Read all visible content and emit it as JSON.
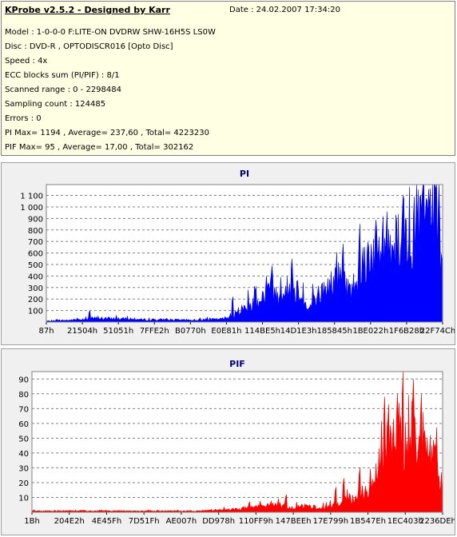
{
  "header": {
    "title": "KProbe v2.5.2 - Designed by Karr",
    "date": "Date : 24.02.2007 17:34:20",
    "lines": [
      "Model : 1-0-0-0 F:LITE-ON DVDRW SHW-16H5S  LS0W",
      "Disc : DVD-R , OPTODISCR016 [Opto Disc]",
      "Speed : 4x",
      "ECC blocks sum (PI/PIF) : 8/1",
      "Scanned range : 0 - 2298484",
      "Sampling count : 124485",
      "Errors : 0",
      "PI Max= 1194 , Average= 237,60 , Total= 4223230",
      "PIF Max= 95 , Average= 17,00 , Total= 302162"
    ]
  },
  "colors": {
    "pi": "#0000ff",
    "pif": "#ff0000",
    "title": "#000080",
    "panel": "#f0f0f0",
    "info_bg": "#ffffe3"
  },
  "chart_data": [
    {
      "type": "area",
      "title": "PI",
      "ylim": [
        0,
        1194
      ],
      "yticks": [
        100,
        200,
        300,
        400,
        500,
        600,
        700,
        800,
        900,
        1000,
        1100
      ],
      "ytick_labels": [
        "100",
        "200",
        "300",
        "400",
        "500",
        "600",
        "700",
        "800",
        "900",
        "1 000",
        "1 100"
      ],
      "x_tick_labels": [
        "87h",
        "21504h",
        "51051h",
        "7FFE2h",
        "B0770h",
        "E0E81h",
        "114BE5h",
        "14D1E3h",
        "185845h",
        "1BE022h",
        "1F6B28h",
        "22F74Ch"
      ],
      "grid": true,
      "series": [
        {
          "profile": [
            [
              0,
              10
            ],
            [
              0.06,
              20
            ],
            [
              0.12,
              40
            ],
            [
              0.18,
              35
            ],
            [
              0.24,
              25
            ],
            [
              0.3,
              25
            ],
            [
              0.36,
              20
            ],
            [
              0.4,
              25
            ],
            [
              0.44,
              30
            ],
            [
              0.47,
              60
            ],
            [
              0.5,
              150
            ],
            [
              0.53,
              210
            ],
            [
              0.56,
              320
            ],
            [
              0.59,
              280
            ],
            [
              0.62,
              380
            ],
            [
              0.64,
              330
            ],
            [
              0.66,
              120
            ],
            [
              0.68,
              250
            ],
            [
              0.71,
              360
            ],
            [
              0.74,
              470
            ],
            [
              0.77,
              320
            ],
            [
              0.79,
              520
            ],
            [
              0.82,
              760
            ],
            [
              0.85,
              720
            ],
            [
              0.88,
              900
            ],
            [
              0.91,
              920
            ],
            [
              0.94,
              1060
            ],
            [
              0.97,
              1120
            ],
            [
              0.99,
              900
            ],
            [
              1.0,
              650
            ]
          ],
          "peaks": [
            [
              0.11,
              100
            ],
            [
              0.47,
              220
            ],
            [
              0.53,
              310
            ],
            [
              0.57,
              490
            ],
            [
              0.62,
              550
            ],
            [
              0.75,
              680
            ],
            [
              0.8,
              650
            ],
            [
              0.85,
              920
            ],
            [
              0.86,
              960
            ],
            [
              0.9,
              1100
            ],
            [
              0.93,
              1090
            ],
            [
              0.95,
              1110
            ],
            [
              0.97,
              1160
            ],
            [
              0.985,
              1194
            ]
          ]
        }
      ]
    },
    {
      "type": "area",
      "title": "PIF",
      "ylim": [
        0,
        95
      ],
      "yticks": [
        10,
        20,
        30,
        40,
        50,
        60,
        70,
        80,
        90
      ],
      "ytick_labels": [
        "10",
        "20",
        "30",
        "40",
        "50",
        "60",
        "70",
        "80",
        "90"
      ],
      "x_tick_labels": [
        "1Bh",
        "204E2h",
        "4E45Fh",
        "7D51Fh",
        "AE007h",
        "DD978h",
        "110FF9h",
        "147BEEh",
        "17E799h",
        "1B547Eh",
        "1EC403h",
        "2236DEh"
      ],
      "grid": true,
      "series": [
        {
          "profile": [
            [
              0,
              1
            ],
            [
              0.4,
              1
            ],
            [
              0.46,
              2
            ],
            [
              0.52,
              3
            ],
            [
              0.56,
              5
            ],
            [
              0.6,
              6
            ],
            [
              0.62,
              4
            ],
            [
              0.66,
              5
            ],
            [
              0.7,
              4
            ],
            [
              0.74,
              6
            ],
            [
              0.77,
              11
            ],
            [
              0.79,
              9
            ],
            [
              0.81,
              13
            ],
            [
              0.83,
              20
            ],
            [
              0.85,
              40
            ],
            [
              0.87,
              52
            ],
            [
              0.89,
              55
            ],
            [
              0.91,
              58
            ],
            [
              0.93,
              55
            ],
            [
              0.95,
              52
            ],
            [
              0.97,
              48
            ],
            [
              0.99,
              35
            ],
            [
              1.0,
              20
            ]
          ],
          "peaks": [
            [
              0.53,
              7
            ],
            [
              0.62,
              12
            ],
            [
              0.74,
              17
            ],
            [
              0.76,
              23
            ],
            [
              0.8,
              30
            ],
            [
              0.86,
              78
            ],
            [
              0.87,
              73
            ],
            [
              0.89,
              80
            ],
            [
              0.905,
              95
            ],
            [
              0.93,
              90
            ],
            [
              0.95,
              80
            ]
          ]
        }
      ]
    }
  ]
}
